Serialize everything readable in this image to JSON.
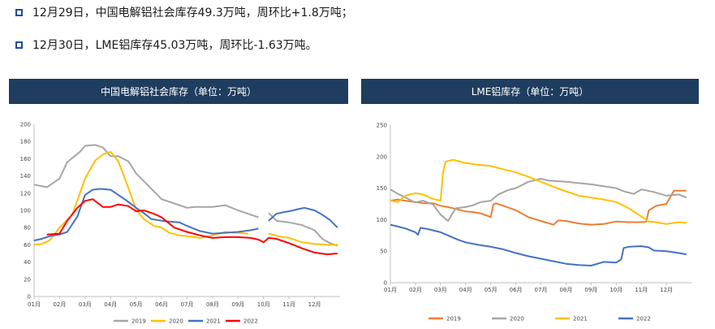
{
  "bullets": [
    "12月29日，中国电解铝社会库存49.3万吨，周环比+1.8万吨；",
    "12月30日，LME铝库存45.03万吨，周环比-1.63万吨。"
  ],
  "colors": {
    "bullet_box": "#1f4e9b",
    "title_bar": "#1f3d5f"
  },
  "chart_data": [
    {
      "type": "line",
      "title": "中国电解铝社会库存（单位：万吨）",
      "x_tick_labels": [
        "01月",
        "02月",
        "03月",
        "04月",
        "05月",
        "06月",
        "07月",
        "08月",
        "09月",
        "10月",
        "11月",
        "12月"
      ],
      "xlim": [
        1,
        13
      ],
      "ylim": [
        0,
        200
      ],
      "y_ticks": [
        0,
        20,
        40,
        60,
        80,
        100,
        120,
        140,
        160,
        180,
        200
      ],
      "grid": false,
      "legend": "bottom",
      "series": [
        {
          "name": "2019",
          "color": "#a6a6a6",
          "x": [
            1,
            1.5,
            2,
            2.3,
            2.8,
            3,
            3.4,
            3.7,
            4,
            4.3,
            4.7,
            5,
            5.5,
            6,
            6.5,
            7,
            7.3,
            8,
            8.5,
            9,
            9.3,
            9.8
          ],
          "y": [
            130,
            127,
            137,
            156,
            168,
            175,
            176,
            173,
            163,
            163,
            157,
            143,
            128,
            113,
            108,
            103,
            104,
            104,
            106,
            100,
            97,
            92
          ]
        },
        {
          "name": "2019",
          "color": "#a6a6a6",
          "x": [
            10.2,
            10.5,
            11,
            11.5,
            12,
            12.3,
            12.6,
            12.9
          ],
          "y": [
            97,
            88,
            86,
            83,
            77,
            67,
            62,
            59
          ]
        },
        {
          "name": "2020",
          "color": "#ffc000",
          "x": [
            1,
            1.3,
            1.6,
            2,
            2.5,
            3,
            3.4,
            3.7,
            4,
            4.3,
            4.6,
            5,
            5.3,
            5.7,
            6,
            6.3,
            6.7,
            7,
            7.5,
            8,
            8.5,
            9,
            9.4
          ],
          "y": [
            60,
            61,
            65,
            80,
            95,
            137,
            158,
            165,
            168,
            157,
            134,
            101,
            90,
            82,
            80,
            74,
            71,
            70,
            68,
            71,
            75,
            74,
            73
          ]
        },
        {
          "name": "2020",
          "color": "#ffc000",
          "x": [
            10.2,
            10.6,
            11,
            11.5,
            12,
            12.5,
            12.9
          ],
          "y": [
            73,
            70,
            68,
            63,
            61,
            60,
            60
          ]
        },
        {
          "name": "2021",
          "color": "#4472c4",
          "x": [
            1,
            1.3,
            1.6,
            2,
            2.3,
            2.7,
            3,
            3.3,
            3.6,
            4,
            4.3,
            4.6,
            5,
            5.3,
            5.6,
            6,
            6.3,
            6.7,
            7,
            7.5,
            8,
            8.5,
            9,
            9.5,
            9.8
          ],
          "y": [
            65,
            67,
            70,
            72,
            75,
            93,
            118,
            124,
            125,
            124,
            118,
            112,
            103,
            97,
            90,
            88,
            87,
            86,
            82,
            76,
            73,
            74,
            75,
            77,
            79
          ]
        },
        {
          "name": "2021",
          "color": "#4472c4",
          "x": [
            10.2,
            10.5,
            10.8,
            11,
            11.3,
            11.6,
            12,
            12.3,
            12.6,
            12.9
          ],
          "y": [
            88,
            96,
            98,
            99,
            101,
            103,
            100,
            95,
            89,
            80
          ]
        },
        {
          "name": "2022",
          "color": "#ff0000",
          "x": [
            1.5,
            2,
            2.3,
            2.7,
            3,
            3.3,
            3.7,
            4,
            4.3,
            4.7,
            5,
            5.3,
            5.7,
            6,
            6.5,
            7,
            7.5,
            8,
            8.5,
            9,
            9.5,
            9.8,
            10,
            10.2,
            10.5,
            11,
            11.5,
            12,
            12.5,
            12.9
          ],
          "y": [
            72,
            73,
            88,
            103,
            111,
            113,
            104,
            104,
            107,
            105,
            99,
            100,
            96,
            92,
            80,
            75,
            71,
            68,
            69,
            69,
            68,
            66,
            63,
            68,
            67,
            62,
            56,
            51,
            49,
            50
          ]
        }
      ]
    },
    {
      "type": "line",
      "title": "LME铝库存（单位：万吨）",
      "x_tick_labels": [
        "01月",
        "02月",
        "03月",
        "04月",
        "05月",
        "06月",
        "07月",
        "08月",
        "09月",
        "10月",
        "11月",
        "12月"
      ],
      "xlim": [
        1,
        13
      ],
      "ylim": [
        0,
        250
      ],
      "y_ticks": [
        0,
        50,
        100,
        150,
        200,
        250
      ],
      "grid": false,
      "legend": "bottom",
      "series": [
        {
          "name": "2019",
          "color": "#ed7d31",
          "x": [
            1,
            1.3,
            1.6,
            2,
            2.3,
            2.7,
            3,
            3.3,
            3.6,
            4,
            4.3,
            4.6,
            5,
            5.1,
            5.2,
            5.5,
            6,
            6.5,
            7,
            7.5,
            7.7,
            8,
            8.5,
            9,
            9.5,
            10,
            10.5,
            11,
            11.2,
            11.3,
            11.6,
            12,
            12.3,
            12.8
          ],
          "y": [
            130,
            132,
            130,
            128,
            126,
            126,
            122,
            120,
            117,
            113,
            112,
            110,
            104,
            124,
            126,
            122,
            115,
            104,
            98,
            92,
            99,
            98,
            94,
            92,
            93,
            97,
            96,
            96,
            97,
            115,
            122,
            125,
            146,
            146
          ]
        },
        {
          "name": "2020",
          "color": "#a5a5a5",
          "x": [
            1,
            1.3,
            1.6,
            2,
            2.3,
            2.7,
            3,
            3.3,
            3.6,
            4,
            4.3,
            4.6,
            5,
            5.3,
            5.7,
            6,
            6.5,
            7,
            7.3,
            8,
            8.5,
            9,
            9.5,
            10,
            10.3,
            10.7,
            11,
            11.5,
            12,
            12.5,
            12.8
          ],
          "y": [
            148,
            141,
            135,
            127,
            130,
            124,
            108,
            98,
            118,
            120,
            123,
            128,
            130,
            140,
            147,
            150,
            160,
            165,
            162,
            160,
            158,
            156,
            153,
            150,
            145,
            141,
            148,
            144,
            138,
            140,
            135
          ]
        },
        {
          "name": "2021",
          "color": "#ffc000",
          "x": [
            1,
            1.3,
            1.6,
            2,
            2.3,
            2.7,
            3,
            3.1,
            3.2,
            3.5,
            4,
            4.5,
            5,
            5.5,
            6,
            6.5,
            7,
            7.5,
            8,
            8.5,
            9,
            9.5,
            10,
            10.5,
            11,
            11.3,
            11.6,
            12,
            12.5,
            12.8
          ],
          "y": [
            130,
            128,
            138,
            142,
            140,
            133,
            130,
            175,
            192,
            195,
            190,
            187,
            185,
            180,
            175,
            168,
            160,
            152,
            145,
            138,
            135,
            132,
            128,
            118,
            105,
            97,
            96,
            93,
            96,
            95
          ]
        },
        {
          "name": "2022",
          "color": "#4472c4",
          "x": [
            1,
            1.3,
            1.6,
            2,
            2.1,
            2.2,
            2.5,
            3,
            3.3,
            3.7,
            4,
            4.5,
            5,
            5.5,
            6,
            6.5,
            7,
            7.5,
            8,
            8.5,
            9,
            9.5,
            10,
            10.2,
            10.3,
            10.5,
            11,
            11.3,
            11.5,
            12,
            12.5,
            12.8
          ],
          "y": [
            92,
            89,
            86,
            80,
            76,
            87,
            85,
            80,
            75,
            68,
            64,
            60,
            57,
            53,
            47,
            42,
            38,
            34,
            30,
            28,
            27,
            33,
            32,
            37,
            55,
            57,
            58,
            56,
            51,
            50,
            47,
            45
          ]
        }
      ]
    }
  ]
}
